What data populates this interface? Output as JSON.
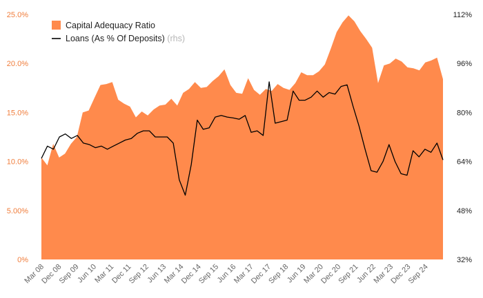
{
  "chart_data": {
    "type": "area+line",
    "legend": [
      {
        "label": "Capital Adequacy Ratio",
        "suffix": "",
        "color": "#ff8a4c",
        "kind": "area"
      },
      {
        "label": "Loans (As % Of Deposits)",
        "suffix": "(rhs)",
        "color": "#000000",
        "kind": "line"
      }
    ],
    "left_axis": {
      "min": 0,
      "max": 25,
      "ticks": [
        0,
        5,
        10,
        15,
        20,
        25
      ],
      "tick_labels": [
        "0%",
        "5.00%",
        "10.0%",
        "15.0%",
        "20.0%",
        "25.0%"
      ],
      "color": "#f07c3a"
    },
    "right_axis": {
      "min": 32,
      "max": 112,
      "ticks": [
        32,
        48,
        64,
        80,
        96,
        112
      ],
      "tick_labels": [
        "32%",
        "48%",
        "64%",
        "80%",
        "96%",
        "112%"
      ],
      "color": "#222222"
    },
    "x_ticks": [
      "Mar 08",
      "Dec 08",
      "Sep 09",
      "Jun 10",
      "Mar 11",
      "Dec 11",
      "Sep 12",
      "Jun 13",
      "Mar 14",
      "Dec 14",
      "Sep 15",
      "Jun 16",
      "Mar 17",
      "Dec 17",
      "Sep 18",
      "Jun 19",
      "Mar 20",
      "Dec 20",
      "Sep 21",
      "Jun 22",
      "Mar 23",
      "Dec 23",
      "Sep 24"
    ],
    "series": [
      {
        "name": "Capital Adequacy Ratio",
        "axis": "left",
        "values": [
          10.4,
          9.6,
          11.8,
          10.4,
          10.8,
          11.8,
          12.5,
          15.0,
          15.2,
          16.5,
          17.8,
          17.9,
          18.1,
          16.3,
          15.9,
          15.6,
          14.5,
          15.1,
          14.7,
          15.3,
          15.7,
          15.8,
          16.4,
          15.7,
          17.0,
          17.4,
          18.1,
          17.5,
          17.6,
          18.2,
          18.7,
          19.4,
          17.8,
          17.0,
          16.9,
          18.5,
          17.3,
          16.8,
          17.4,
          17.2,
          17.9,
          17.5,
          17.3,
          18.0,
          19.1,
          18.8,
          18.8,
          19.2,
          19.9,
          21.5,
          23.2,
          24.2,
          24.9,
          24.3,
          23.3,
          22.5,
          21.6,
          18.0,
          19.8,
          20.0,
          20.5,
          20.2,
          19.6,
          19.5,
          19.3,
          20.1,
          20.3,
          20.6,
          18.4
        ]
      },
      {
        "name": "Loans (As % Of Deposits)",
        "axis": "right",
        "values": [
          65.0,
          69.0,
          68.0,
          72.0,
          73.0,
          71.5,
          72.5,
          70.0,
          69.5,
          68.5,
          69.0,
          68.0,
          69.0,
          70.0,
          71.0,
          71.5,
          73.2,
          74.0,
          74.0,
          72.0,
          72.0,
          72.0,
          70.0,
          58.0,
          53.0,
          63.0,
          77.5,
          74.5,
          75.0,
          78.5,
          79.0,
          78.5,
          78.2,
          77.8,
          79.0,
          73.5,
          74.0,
          72.5,
          90.0,
          76.5,
          77.0,
          77.5,
          87.0,
          84.0,
          84.0,
          85.0,
          87.0,
          85.0,
          86.5,
          86.0,
          88.5,
          89.0,
          82.0,
          75.5,
          68.0,
          61.0,
          60.5,
          64.0,
          69.5,
          64.0,
          60.0,
          59.5,
          67.5,
          65.5,
          68.0,
          67.0,
          70.0,
          64.5
        ]
      }
    ]
  }
}
